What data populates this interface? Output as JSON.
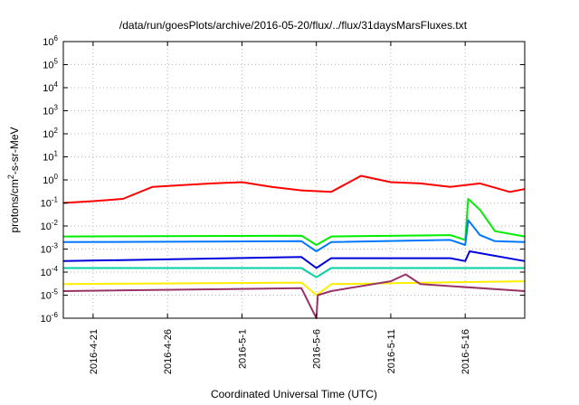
{
  "chart_data": {
    "type": "line",
    "title": "/data/run/goesPlots/archive/2016-05-20/flux/../flux/31daysMarsFluxes.txt",
    "xlabel": "Coordinated Universal Time (UTC)",
    "ylabel_base": "protons/cm",
    "ylabel_sup": "2",
    "ylabel_rest": "-s-sr-MeV",
    "yscale": "log",
    "ylim_exp": [
      -6,
      6
    ],
    "y_tick_base": "10",
    "y_tick_exponents": [
      "-6",
      "-5",
      "-4",
      "-3",
      "-2",
      "-1",
      "0",
      "1",
      "2",
      "3",
      "4",
      "5",
      "6"
    ],
    "x_range_days": [
      "2016-04-19",
      "2016-05-20"
    ],
    "x_ticks": [
      {
        "label": "2016-4-21",
        "date": "2016-04-21"
      },
      {
        "label": "2016-4-26",
        "date": "2016-04-26"
      },
      {
        "label": "2016-5-1",
        "date": "2016-05-01"
      },
      {
        "label": "2016-5-6",
        "date": "2016-05-06"
      },
      {
        "label": "2016-5-11",
        "date": "2016-05-11"
      },
      {
        "label": "2016-5-16",
        "date": "2016-05-16"
      }
    ],
    "grid": true,
    "series": [
      {
        "color": "#ff0000",
        "x": [
          "2016-04-19",
          "2016-04-21",
          "2016-04-23",
          "2016-04-25",
          "2016-04-27",
          "2016-04-29",
          "2016-05-01",
          "2016-05-03",
          "2016-05-05",
          "2016-05-07",
          "2016-05-09",
          "2016-05-11",
          "2016-05-13",
          "2016-05-15",
          "2016-05-17",
          "2016-05-19",
          "2016-05-20"
        ],
        "y": [
          0.1,
          0.12,
          0.15,
          0.5,
          0.6,
          0.7,
          0.8,
          0.5,
          0.35,
          0.3,
          1.5,
          0.8,
          0.7,
          0.5,
          0.7,
          0.3,
          0.4
        ]
      },
      {
        "color": "#00ee00",
        "x": [
          "2016-04-19",
          "2016-05-05",
          "2016-05-06",
          "2016-05-07",
          "2016-05-15",
          "2016-05-16",
          "2016-05-16.2",
          "2016-05-17",
          "2016-05-18",
          "2016-05-20"
        ],
        "y": [
          0.0035,
          0.0038,
          0.0015,
          0.0035,
          0.004,
          0.0025,
          0.15,
          0.05,
          0.006,
          0.0035
        ]
      },
      {
        "color": "#0077ff",
        "x": [
          "2016-04-19",
          "2016-05-05",
          "2016-05-06",
          "2016-05-07",
          "2016-05-15",
          "2016-05-16",
          "2016-05-16.2",
          "2016-05-17",
          "2016-05-18",
          "2016-05-20"
        ],
        "y": [
          0.002,
          0.0022,
          0.0008,
          0.002,
          0.0025,
          0.0015,
          0.018,
          0.004,
          0.0022,
          0.002
        ]
      },
      {
        "color": "#0000dd",
        "x": [
          "2016-04-19",
          "2016-05-05",
          "2016-05-06",
          "2016-05-07",
          "2016-05-15",
          "2016-05-16",
          "2016-05-16.3",
          "2016-05-20"
        ],
        "y": [
          0.0003,
          0.00045,
          0.00015,
          0.0004,
          0.0004,
          0.0003,
          0.0008,
          0.0003
        ]
      },
      {
        "color": "#00d0a0",
        "x": [
          "2016-04-19",
          "2016-05-05",
          "2016-05-06",
          "2016-05-07",
          "2016-05-20"
        ],
        "y": [
          0.00015,
          0.00015,
          6e-05,
          0.00015,
          0.00015
        ]
      },
      {
        "color": "#ffee00",
        "x": [
          "2016-04-19",
          "2016-05-05",
          "2016-05-06",
          "2016-05-07",
          "2016-05-20"
        ],
        "y": [
          3e-05,
          3.5e-05,
          1e-05,
          3e-05,
          4e-05
        ]
      },
      {
        "color": "#993366",
        "x": [
          "2016-04-19",
          "2016-05-05",
          "2016-05-06",
          "2016-05-06.1",
          "2016-05-07",
          "2016-05-11",
          "2016-05-12",
          "2016-05-13",
          "2016-05-20"
        ],
        "y": [
          1.5e-05,
          2e-05,
          1e-06,
          1e-05,
          1.5e-05,
          4e-05,
          8e-05,
          3e-05,
          1.5e-05
        ]
      }
    ]
  }
}
